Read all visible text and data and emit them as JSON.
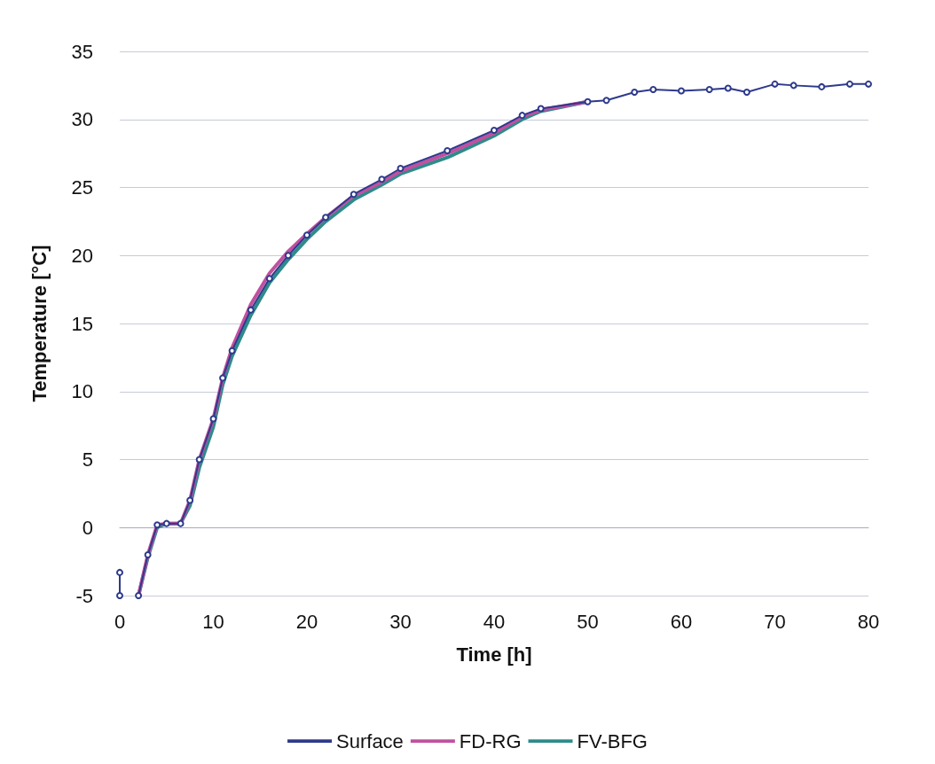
{
  "chart_data": {
    "type": "line",
    "xlabel": "Time [h]",
    "ylabel": "Temperature [°C]",
    "xlim": [
      0,
      80
    ],
    "xticks": [
      0,
      10,
      20,
      30,
      40,
      50,
      60,
      70,
      80
    ],
    "ylim": [
      -5,
      35
    ],
    "yticks": [
      -5,
      0,
      5,
      10,
      15,
      20,
      25,
      30,
      35
    ],
    "grid": "y",
    "legend": "bottom",
    "series": [
      {
        "name": "Surface",
        "color": "#2e3a8c",
        "marker": "circle",
        "x": [
          0,
          0,
          1,
          2,
          3,
          4,
          5,
          6.5,
          7.5,
          8.5,
          10,
          11,
          12,
          14,
          16,
          18,
          20,
          22,
          25,
          28,
          30,
          35,
          40,
          43,
          45,
          50,
          52,
          55,
          57,
          60,
          63,
          65,
          67,
          70,
          72,
          75,
          78,
          80
        ],
        "values": [
          -3.3,
          -5,
          null,
          -5,
          -2,
          0.2,
          0.3,
          0.3,
          2,
          5,
          8,
          11,
          13,
          16,
          18.3,
          20,
          21.5,
          22.8,
          24.5,
          25.6,
          26.4,
          27.7,
          29.2,
          30.3,
          30.8,
          31.3,
          31.4,
          32,
          32.2,
          32.1,
          32.2,
          32.3,
          32,
          32.6,
          32.5,
          32.4,
          32.6,
          32.6
        ]
      },
      {
        "name": "FD-RG",
        "color": "#c050a0",
        "marker": "none",
        "x": [
          2,
          3,
          4,
          5,
          6.5,
          7.5,
          8.5,
          10,
          11,
          12,
          14,
          16,
          18,
          20,
          22,
          25,
          28,
          30,
          35,
          40,
          43,
          45,
          50
        ],
        "values": [
          -5,
          -2,
          0.2,
          0.3,
          0.3,
          2,
          5,
          8,
          11,
          13.2,
          16.4,
          18.7,
          20.3,
          21.6,
          22.8,
          24.4,
          25.4,
          26.2,
          27.5,
          29,
          30.2,
          30.7,
          31.3
        ]
      },
      {
        "name": "FV-BFG",
        "color": "#2e8b8b",
        "marker": "none",
        "x": [
          2,
          3,
          4,
          5,
          6.5,
          7.5,
          8.5,
          10,
          11,
          12,
          14,
          16,
          18,
          20,
          22,
          25,
          28,
          30,
          35,
          40,
          43,
          45,
          50
        ],
        "values": [
          -5,
          -2.2,
          0,
          0.3,
          0.3,
          1.6,
          4.4,
          7.4,
          10.5,
          12.6,
          15.6,
          18,
          19.7,
          21.2,
          22.5,
          24.1,
          25.2,
          26,
          27.2,
          28.8,
          30,
          30.6,
          31.3
        ]
      }
    ]
  }
}
